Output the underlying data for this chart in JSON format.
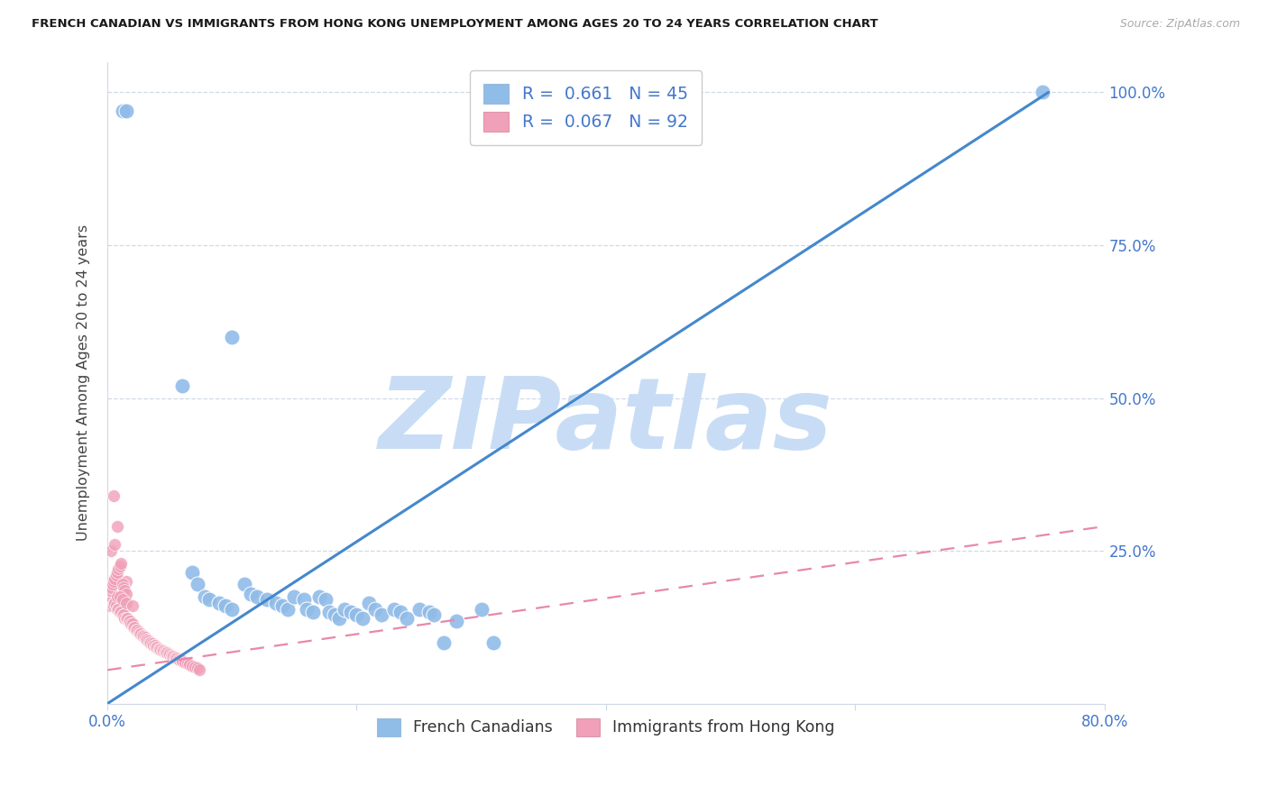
{
  "title": "FRENCH CANADIAN VS IMMIGRANTS FROM HONG KONG UNEMPLOYMENT AMONG AGES 20 TO 24 YEARS CORRELATION CHART",
  "source": "Source: ZipAtlas.com",
  "ylabel": "Unemployment Among Ages 20 to 24 years",
  "xlim": [
    0.0,
    0.8
  ],
  "ylim": [
    0.0,
    1.05
  ],
  "xtick_positions": [
    0.0,
    0.2,
    0.4,
    0.6,
    0.8
  ],
  "xtick_labels": [
    "0.0%",
    "",
    "",
    "",
    "80.0%"
  ],
  "ytick_positions": [
    0.0,
    0.25,
    0.5,
    0.75,
    1.0
  ],
  "ytick_labels_right": [
    "",
    "25.0%",
    "50.0%",
    "75.0%",
    "100.0%"
  ],
  "background_color": "#ffffff",
  "watermark_text": "ZIPatlas",
  "watermark_color": "#c8ddf5",
  "blue_color": "#90bce8",
  "pink_color": "#f0a0b8",
  "blue_line_color": "#4488cc",
  "pink_line_color": "#e888aa",
  "grid_color": "#d0d8e8",
  "tick_label_color": "#4477cc",
  "ylabel_color": "#444444",
  "blue_scatter_x": [
    0.012,
    0.015,
    0.06,
    0.1,
    0.068,
    0.072,
    0.078,
    0.082,
    0.09,
    0.095,
    0.1,
    0.11,
    0.115,
    0.12,
    0.128,
    0.135,
    0.14,
    0.145,
    0.15,
    0.158,
    0.16,
    0.165,
    0.17,
    0.175,
    0.178,
    0.182,
    0.186,
    0.19,
    0.195,
    0.2,
    0.205,
    0.21,
    0.215,
    0.22,
    0.23,
    0.235,
    0.24,
    0.25,
    0.258,
    0.262,
    0.27,
    0.28,
    0.3,
    0.31,
    0.75
  ],
  "blue_scatter_y": [
    0.97,
    0.97,
    0.52,
    0.6,
    0.215,
    0.195,
    0.175,
    0.17,
    0.165,
    0.16,
    0.155,
    0.195,
    0.18,
    0.175,
    0.17,
    0.165,
    0.16,
    0.155,
    0.175,
    0.17,
    0.155,
    0.15,
    0.175,
    0.17,
    0.15,
    0.145,
    0.14,
    0.155,
    0.15,
    0.145,
    0.14,
    0.165,
    0.155,
    0.145,
    0.155,
    0.15,
    0.14,
    0.155,
    0.15,
    0.145,
    0.1,
    0.135,
    0.155,
    0.1,
    1.0
  ],
  "pink_scatter_x": [
    0.002,
    0.003,
    0.004,
    0.005,
    0.005,
    0.006,
    0.007,
    0.008,
    0.008,
    0.009,
    0.01,
    0.01,
    0.011,
    0.012,
    0.013,
    0.014,
    0.015,
    0.015,
    0.016,
    0.017,
    0.018,
    0.019,
    0.02,
    0.021,
    0.022,
    0.023,
    0.024,
    0.025,
    0.026,
    0.027,
    0.028,
    0.029,
    0.03,
    0.031,
    0.032,
    0.033,
    0.034,
    0.035,
    0.036,
    0.037,
    0.038,
    0.039,
    0.04,
    0.041,
    0.042,
    0.043,
    0.044,
    0.045,
    0.046,
    0.047,
    0.048,
    0.049,
    0.05,
    0.051,
    0.052,
    0.053,
    0.054,
    0.055,
    0.056,
    0.057,
    0.058,
    0.059,
    0.06,
    0.062,
    0.064,
    0.066,
    0.068,
    0.07,
    0.072,
    0.074,
    0.002,
    0.003,
    0.004,
    0.005,
    0.006,
    0.007,
    0.008,
    0.009,
    0.01,
    0.011,
    0.012,
    0.013,
    0.014,
    0.015,
    0.003,
    0.005,
    0.006,
    0.008,
    0.01,
    0.012,
    0.015,
    0.02
  ],
  "pink_scatter_y": [
    0.16,
    0.165,
    0.17,
    0.165,
    0.16,
    0.165,
    0.16,
    0.155,
    0.29,
    0.155,
    0.15,
    0.2,
    0.15,
    0.145,
    0.145,
    0.14,
    0.14,
    0.2,
    0.14,
    0.135,
    0.135,
    0.13,
    0.13,
    0.125,
    0.125,
    0.12,
    0.12,
    0.118,
    0.115,
    0.115,
    0.112,
    0.11,
    0.108,
    0.106,
    0.104,
    0.102,
    0.1,
    0.1,
    0.098,
    0.096,
    0.095,
    0.093,
    0.092,
    0.09,
    0.089,
    0.088,
    0.087,
    0.086,
    0.085,
    0.084,
    0.083,
    0.082,
    0.08,
    0.079,
    0.078,
    0.077,
    0.076,
    0.075,
    0.074,
    0.073,
    0.072,
    0.071,
    0.07,
    0.068,
    0.066,
    0.064,
    0.062,
    0.06,
    0.058,
    0.056,
    0.185,
    0.19,
    0.195,
    0.2,
    0.205,
    0.21,
    0.215,
    0.22,
    0.225,
    0.23,
    0.195,
    0.19,
    0.185,
    0.18,
    0.25,
    0.34,
    0.26,
    0.175,
    0.175,
    0.17,
    0.165,
    0.16
  ],
  "blue_line_x": [
    0.0,
    0.755
  ],
  "blue_line_y": [
    0.0,
    1.0
  ],
  "pink_line_x": [
    0.0,
    0.8
  ],
  "pink_line_y": [
    0.055,
    0.29
  ],
  "legend1_label": "R =  0.661   N = 45",
  "legend2_label": "R =  0.067   N = 92",
  "bottom_legend1": "French Canadians",
  "bottom_legend2": "Immigrants from Hong Kong"
}
